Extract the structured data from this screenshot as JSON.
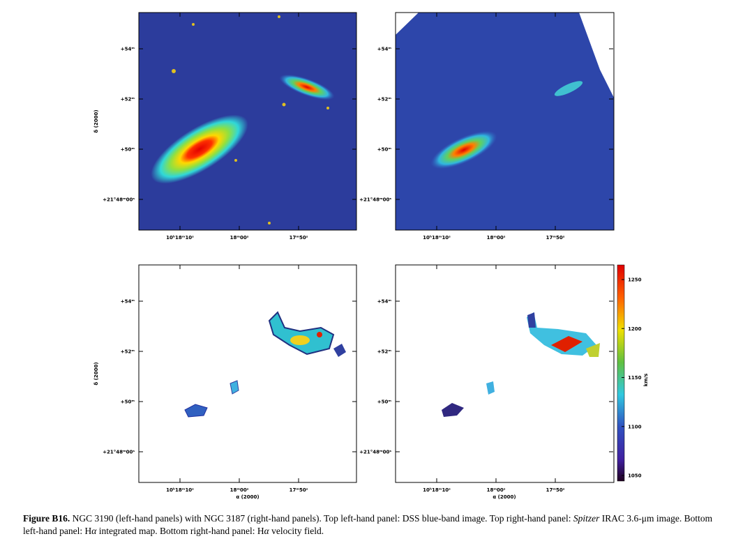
{
  "panels": [
    {
      "yticks": [
        "+54ᵐ",
        "+52ᵐ",
        "+50ᵐ",
        "+21°48ᵐ00ˢ"
      ],
      "xticks": [
        "10ʰ18ᵐ10ˢ",
        "18ᵐ00ˢ",
        "17ᵐ50ˢ"
      ],
      "ylabel": "δ (2000)"
    },
    {
      "yticks": [
        "+54ᵐ",
        "+52ᵐ",
        "+50ᵐ",
        "+21°48ᵐ00ˢ"
      ],
      "xticks": [
        "10ʰ18ᵐ10ˢ",
        "18ᵐ00ˢ",
        "17ᵐ50ˢ"
      ]
    },
    {
      "yticks": [
        "+54ᵐ",
        "+52ᵐ",
        "+50ᵐ",
        "+21°48ᵐ00ˢ"
      ],
      "xticks": [
        "10ʰ18ᵐ10ˢ",
        "18ᵐ00ˢ",
        "17ᵐ50ˢ"
      ],
      "ylabel": "δ (2000)",
      "xlabel": "α (2000)"
    },
    {
      "yticks": [
        "+54ᵐ",
        "+52ᵐ",
        "+50ᵐ",
        "+21°48ᵐ00ˢ"
      ],
      "xticks": [
        "10ʰ18ᵐ10ˢ",
        "18ᵐ00ˢ",
        "17ᵐ50ˢ"
      ],
      "xlabel": "α (2000)"
    }
  ],
  "colorbar": {
    "ticks": [
      "1250",
      "1200",
      "1150",
      "1100",
      "1050"
    ],
    "label": "km/s"
  },
  "caption": {
    "label": "Figure B16.",
    "parts": [
      " NGC 3190 (left-hand panels) with NGC 3187 (right-hand panels). Top left-hand panel: DSS blue-band image. Top right-hand panel: ",
      "Spitzer",
      " IRAC 3.6-μm image. Bottom left-hand panel: H",
      "α",
      " integrated map. Bottom right-hand panel: H",
      "α",
      " velocity field."
    ]
  }
}
